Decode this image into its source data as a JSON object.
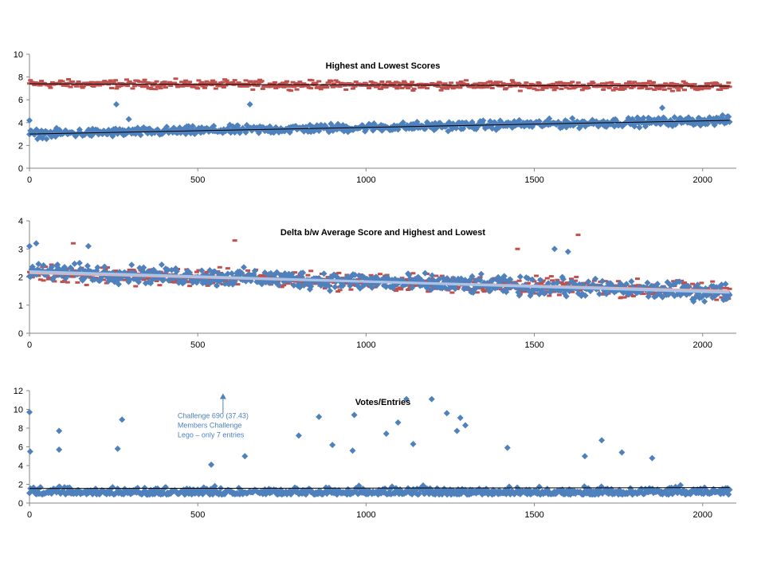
{
  "colors": {
    "blue": "#4f81bd",
    "red": "#c0504d",
    "trend": "#000000",
    "light_trend_blue": "#a9c4e8",
    "light_trend_red": "#e6b0ae",
    "axis": "#868686"
  },
  "chart_data": [
    {
      "type": "scatter",
      "title": "Highest and Lowest Scores",
      "xlim": [
        0,
        2100
      ],
      "ylim": [
        0,
        10
      ],
      "xticks": [
        0,
        500,
        1000,
        1500,
        2000
      ],
      "yticks": [
        0,
        2,
        4,
        6,
        8,
        10
      ],
      "series": [
        {
          "marker": "dash",
          "color": "#c0504d",
          "x_range": [
            0,
            2080
          ],
          "band": {
            "center_start": 7.4,
            "center_end": 7.2,
            "spread": 0.55
          },
          "trend": [
            7.4,
            7.2
          ]
        },
        {
          "marker": "diamond",
          "color": "#4f81bd",
          "x_range": [
            0,
            2080
          ],
          "band": {
            "center_start": 3.0,
            "center_end": 4.2,
            "spread": 0.55
          },
          "trend": [
            3.0,
            4.2
          ],
          "outliers": [
            {
              "x": 0,
              "y": 4.2
            },
            {
              "x": 258,
              "y": 5.6
            },
            {
              "x": 655,
              "y": 5.6
            },
            {
              "x": 1880,
              "y": 5.3
            },
            {
              "x": 295,
              "y": 4.3
            }
          ]
        }
      ]
    },
    {
      "type": "scatter",
      "title": "Delta b/w Average Score and Highest and Lowest",
      "xlim": [
        0,
        2100
      ],
      "ylim": [
        0,
        4
      ],
      "xticks": [
        0,
        500,
        1000,
        1500,
        2000
      ],
      "yticks": [
        0,
        1,
        2,
        3,
        4
      ],
      "series": [
        {
          "marker": "dash",
          "color": "#c0504d",
          "x_range": [
            0,
            2080
          ],
          "band": {
            "center_start": 2.15,
            "center_end": 1.5,
            "spread": 0.45
          },
          "trend": [
            2.15,
            1.5
          ],
          "outliers": [
            {
              "x": 610,
              "y": 3.3
            },
            {
              "x": 1630,
              "y": 3.5
            },
            {
              "x": 130,
              "y": 3.2
            },
            {
              "x": 1450,
              "y": 3.0
            }
          ]
        },
        {
          "marker": "diamond",
          "color": "#4f81bd",
          "x_range": [
            0,
            2080
          ],
          "band": {
            "center_start": 2.2,
            "center_end": 1.45,
            "spread": 0.45
          },
          "trend": [
            2.2,
            1.45
          ],
          "outliers": [
            {
              "x": 0,
              "y": 3.1
            },
            {
              "x": 20,
              "y": 3.2
            },
            {
              "x": 175,
              "y": 3.1
            },
            {
              "x": 1560,
              "y": 3.0
            },
            {
              "x": 1600,
              "y": 2.9
            }
          ]
        }
      ]
    },
    {
      "type": "scatter",
      "title": "Votes/Entries",
      "xlim": [
        0,
        2100
      ],
      "ylim": [
        0,
        12
      ],
      "xticks": [
        0,
        500,
        1000,
        1500,
        2000
      ],
      "yticks": [
        0,
        2,
        4,
        6,
        8,
        10,
        12
      ],
      "series": [
        {
          "marker": "diamond",
          "color": "#4f81bd",
          "x_range": [
            0,
            2080
          ],
          "band": {
            "center_start": 1.5,
            "center_end": 1.5,
            "spread": 0.7
          },
          "trend": [
            1.55,
            1.65
          ],
          "outliers": [
            {
              "x": 0,
              "y": 9.7
            },
            {
              "x": 2,
              "y": 5.5
            },
            {
              "x": 88,
              "y": 7.7
            },
            {
              "x": 88,
              "y": 5.7
            },
            {
              "x": 262,
              "y": 5.8
            },
            {
              "x": 275,
              "y": 8.9
            },
            {
              "x": 800,
              "y": 7.2
            },
            {
              "x": 860,
              "y": 9.2
            },
            {
              "x": 965,
              "y": 9.4
            },
            {
              "x": 1060,
              "y": 7.4
            },
            {
              "x": 1095,
              "y": 8.6
            },
            {
              "x": 1120,
              "y": 11.1
            },
            {
              "x": 1195,
              "y": 11.1
            },
            {
              "x": 1240,
              "y": 9.6
            },
            {
              "x": 1280,
              "y": 9.1
            },
            {
              "x": 1270,
              "y": 7.7
            },
            {
              "x": 1295,
              "y": 8.3
            },
            {
              "x": 1140,
              "y": 6.3
            },
            {
              "x": 1700,
              "y": 6.7
            },
            {
              "x": 1650,
              "y": 5.0
            },
            {
              "x": 1760,
              "y": 5.4
            },
            {
              "x": 1420,
              "y": 5.9
            },
            {
              "x": 960,
              "y": 5.6
            },
            {
              "x": 900,
              "y": 6.2
            },
            {
              "x": 1850,
              "y": 4.8
            },
            {
              "x": 540,
              "y": 4.1
            },
            {
              "x": 640,
              "y": 5.0
            }
          ]
        }
      ],
      "annotation": {
        "x": 575,
        "y": 11.7,
        "lines": [
          "Challenge 690 (37.43)",
          "Members Challenge",
          "Lego – only 7 entries"
        ]
      }
    }
  ]
}
